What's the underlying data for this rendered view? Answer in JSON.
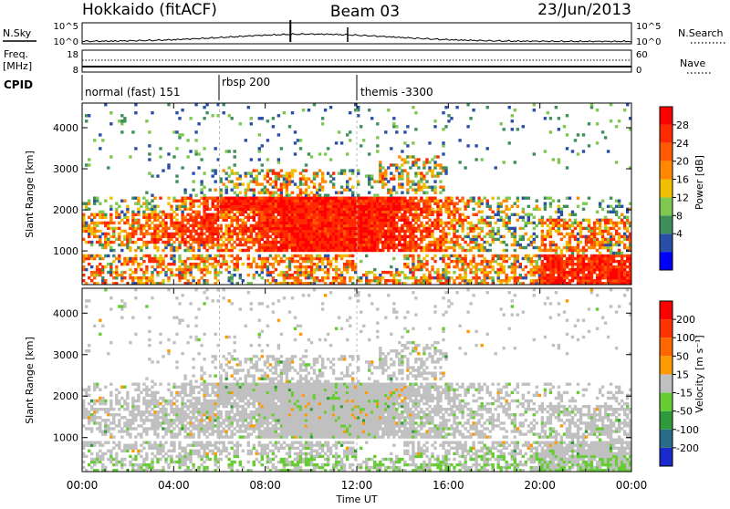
{
  "header": {
    "station": "Hokkaido (fitACF)",
    "beam": "Beam 03",
    "date": "23/Jun/2013"
  },
  "noise_panel": {
    "left_label": "N.Sky",
    "right_label": "N.Search",
    "left_ticks": [
      "10^5",
      "10^0"
    ],
    "right_ticks": [
      "10^5",
      "10^0"
    ]
  },
  "freq_panel": {
    "left_label_1": "Freq.",
    "left_label_2": "[MHz]",
    "right_label": "Nave",
    "left_ticks": [
      "18",
      "8"
    ],
    "right_ticks": [
      "60",
      "0"
    ]
  },
  "cpid_panel": {
    "label": "CPID",
    "modes": [
      {
        "name": "normal (fast) 151",
        "start_hour": 0
      },
      {
        "name": "rbsp 200",
        "start_hour": 6
      },
      {
        "name": "themis -3300",
        "start_hour": 12
      }
    ]
  },
  "chart_data": [
    {
      "type": "heatmap",
      "quantity": "power",
      "ylabel": "Slant Range [km]",
      "ylim": [
        180,
        4600
      ],
      "yticks": [
        "1000",
        "2000",
        "3000",
        "4000"
      ],
      "yticks_values": [
        1000,
        2000,
        3000,
        4000
      ],
      "colorbar_label": "Power [dB]",
      "colorbar_ticks": [
        "28",
        "24",
        "20",
        "16",
        "12",
        "8",
        "4"
      ],
      "colorbar_tick_values": [
        28,
        24,
        20,
        16,
        12,
        8,
        4
      ],
      "colorbar_colors": [
        "#0000ff",
        "#2a4fa8",
        "#3f8f5a",
        "#7ec850",
        "#f0c000",
        "#ff8800",
        "#ff5a00",
        "#ff2a00",
        "#ff0000"
      ]
    },
    {
      "type": "heatmap",
      "quantity": "velocity",
      "ylabel": "Slant Range [km]",
      "ylim": [
        180,
        4600
      ],
      "yticks": [
        "1000",
        "2000",
        "3000",
        "4000"
      ],
      "yticks_values": [
        1000,
        2000,
        3000,
        4000
      ],
      "xlabel": "Time UT",
      "xticks": [
        "00:00",
        "04:00",
        "08:00",
        "12:00",
        "16:00",
        "20:00",
        "00:00"
      ],
      "xticks_values": [
        0,
        4,
        8,
        12,
        16,
        20,
        24
      ],
      "colorbar_label": "Velocity [m s⁻¹]",
      "colorbar_ticks": [
        "200",
        "100",
        "50",
        "15",
        "-15",
        "-50",
        "-100",
        "-200"
      ],
      "colorbar_tick_values": [
        200,
        100,
        50,
        15,
        -15,
        -50,
        -100,
        -200
      ],
      "colorbar_colors": [
        "#1a2acc",
        "#2a6a8a",
        "#2e9a3a",
        "#66cc33",
        "#c0c0c0",
        "#ff9900",
        "#ff6600",
        "#ff3300",
        "#ff0000"
      ]
    }
  ]
}
